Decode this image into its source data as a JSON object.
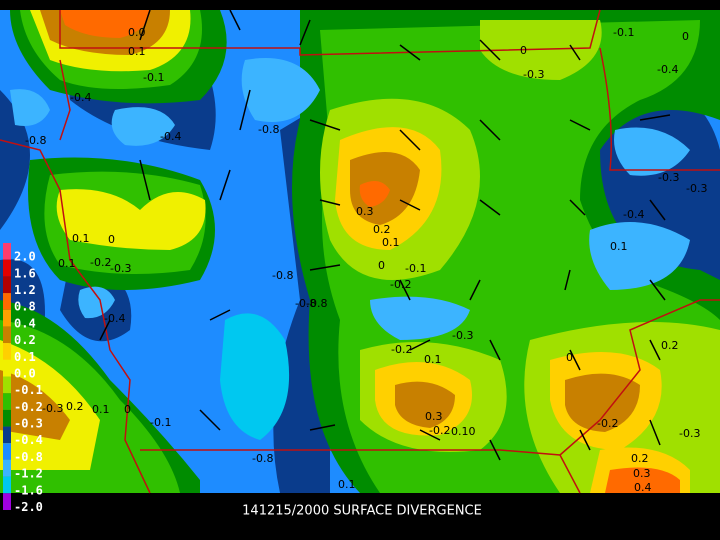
{
  "title": "141215/2000 SURFACE DIVERGENCE",
  "legend": {
    "levels": [
      {
        "label": "2.0",
        "color": "#ff3c6e"
      },
      {
        "label": "1.6",
        "color": "#e00000"
      },
      {
        "label": "1.2",
        "color": "#b00000"
      },
      {
        "label": "0.8",
        "color": "#ff6a00"
      },
      {
        "label": "0.4",
        "color": "#ffa000"
      },
      {
        "label": "0.2",
        "color": "#c88000"
      },
      {
        "label": "0.1",
        "color": "#ffd000"
      },
      {
        "label": "0.0",
        "color": "#f0f000"
      },
      {
        "label": "-0.1",
        "color": "#a0e000"
      },
      {
        "label": "-0.2",
        "color": "#30c000"
      },
      {
        "label": "-0.3",
        "color": "#008c00"
      },
      {
        "label": "-0.4",
        "color": "#0a3c8c"
      },
      {
        "label": "-0.8",
        "color": "#1e8cff"
      },
      {
        "label": "-1.2",
        "color": "#3cb4ff"
      },
      {
        "label": "-1.6",
        "color": "#00c8f0"
      },
      {
        "label": "-2.0",
        "color": "#a000e0"
      }
    ]
  },
  "contour_labels": [
    "0.0",
    "0.1",
    "-0.1",
    "-0.4",
    "-0.8",
    "-0.8",
    "-0.4",
    "-0.8",
    "0.1",
    "0",
    "0.1",
    "-0.2",
    "-0.3",
    "-0.4",
    "0.3",
    "0.2",
    "0.1",
    "0",
    "-0.1",
    "-0.2",
    "-0.8",
    "-0.8",
    "-0.3",
    "-0.2",
    "0.1",
    "0.3",
    "-0.2",
    "0.10",
    "-0.1",
    "0.2",
    "0.1",
    "0",
    "-0.3",
    "-0.8",
    "0.1",
    "0",
    "-0.3",
    "-0.1",
    "0",
    "-0.4",
    "-0.3",
    "-0.3",
    "-0.4",
    "0.1",
    "0.2",
    "-0.2",
    "-0.3",
    "0.2",
    "0.3",
    "0.4",
    "0"
  ]
}
